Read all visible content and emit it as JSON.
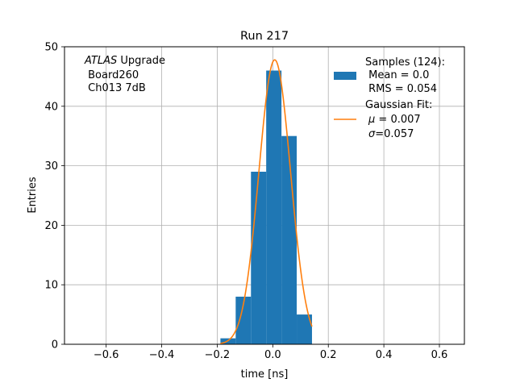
{
  "chart_data": {
    "type": "bar",
    "title": "Run 217",
    "xlabel": "time [ns]",
    "ylabel": "Entries",
    "xlim": [
      -0.75,
      0.69
    ],
    "ylim": [
      0,
      50
    ],
    "grid": true,
    "legend_placement": "upper-right",
    "xticks": [
      "−0.6",
      "−0.4",
      "−0.2",
      "0.0",
      "0.2",
      "0.4",
      "0.6"
    ],
    "xtick_values": [
      -0.6,
      -0.4,
      -0.2,
      0.0,
      0.2,
      0.4,
      0.6
    ],
    "yticks": [
      "0",
      "10",
      "20",
      "30",
      "40",
      "50"
    ],
    "ytick_values": [
      0,
      10,
      20,
      30,
      40,
      50
    ],
    "annotation": {
      "line1_italic": "ATLAS",
      "line1_rest": " Upgrade",
      "line2": " Board260",
      "line3": " Ch013 7dB"
    },
    "histogram": {
      "name": "Samples (124):",
      "color": "#1f77b4",
      "bin_edges": [
        -0.1885,
        -0.1336,
        -0.0786,
        -0.0237,
        0.0313,
        0.0862,
        0.1412
      ],
      "counts": [
        1,
        8,
        29,
        46,
        35,
        5
      ]
    },
    "fit": {
      "name": "Gaussian Fit:",
      "color": "#ff7f0e",
      "mu": 0.007,
      "sigma": 0.057,
      "amplitude": 47.8,
      "range": [
        -0.1885,
        0.1412
      ]
    },
    "legend": {
      "hist_lines": [
        "Samples (124):",
        " Mean = 0.0",
        " RMS = 0.054"
      ],
      "fit_line1": "Gaussian Fit:",
      "fit_mu_sym": "μ",
      "fit_mu_val": " = 0.007",
      "fit_sigma_sym": "σ",
      "fit_sigma_val": "=0.057"
    }
  },
  "colors": {
    "bars": "#1f77b4",
    "fit_line": "#ff7f0e",
    "grid": "#b0b0b0"
  }
}
